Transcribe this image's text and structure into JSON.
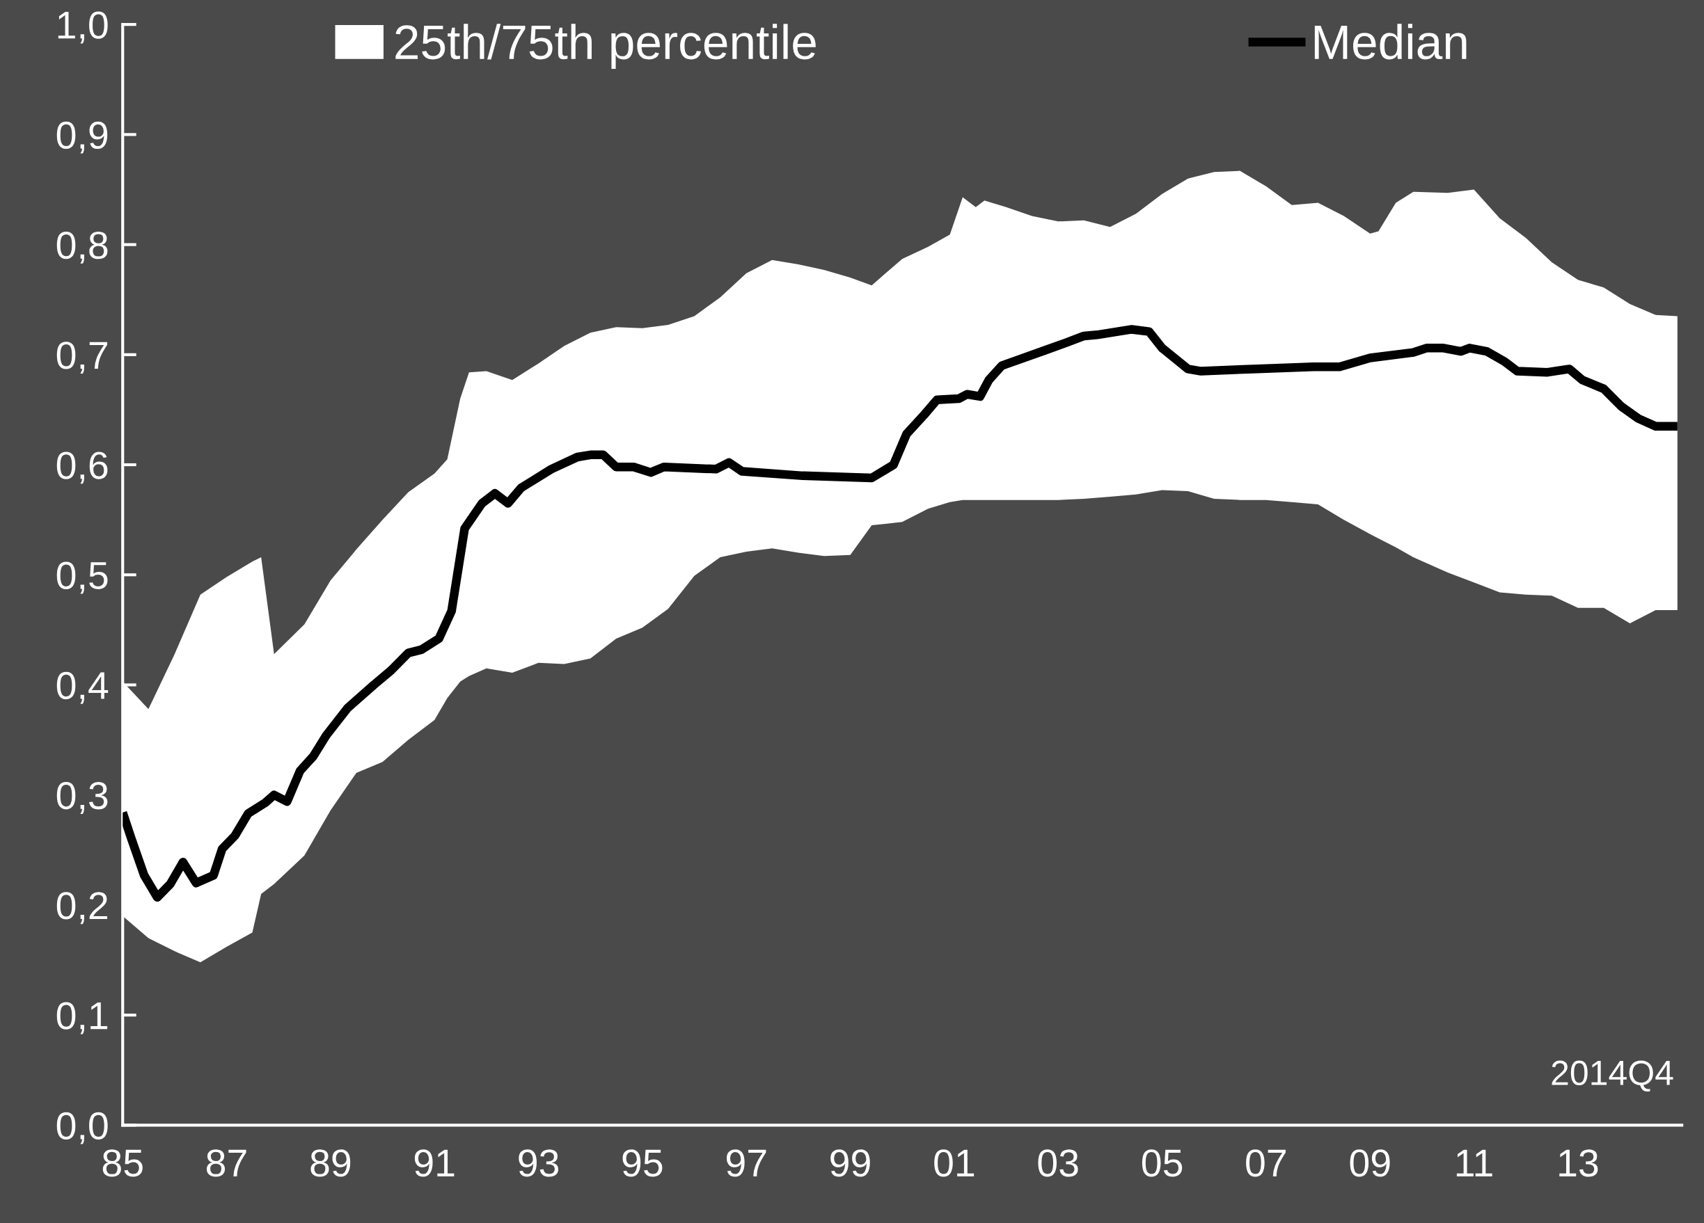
{
  "chart_data": {
    "type": "line",
    "series": [
      {
        "name": "25th/75th percentile",
        "type": "area",
        "color": "#ffffff",
        "x": [
          "1985-01",
          "1985-07",
          "1986-01",
          "1986-07",
          "1987-01",
          "1987-07",
          "1987-09",
          "1987-12",
          "1988-07",
          "1989-01",
          "1989-07",
          "1990-01",
          "1990-07",
          "1991-01",
          "1991-04",
          "1991-07",
          "1991-09",
          "1992-01",
          "1992-07",
          "1993-01",
          "1993-07",
          "1994-01",
          "1994-07",
          "1995-01",
          "1995-07",
          "1996-01",
          "1996-07",
          "1997-01",
          "1997-07",
          "1998-01",
          "1998-07",
          "1999-01",
          "1999-06",
          "2000-01",
          "2000-07",
          "2000-12",
          "2001-03",
          "2001-06",
          "2001-08",
          "2002-01",
          "2002-07",
          "2003-01",
          "2003-07",
          "2004-01",
          "2004-07",
          "2005-01",
          "2005-07",
          "2006-01",
          "2006-07",
          "2007-01",
          "2007-07",
          "2008-01",
          "2008-07",
          "2009-01",
          "2009-03",
          "2009-07",
          "2009-11",
          "2010-07",
          "2011-01",
          "2011-07",
          "2012-01",
          "2012-07",
          "2013-01",
          "2013-07",
          "2014-01",
          "2014-07",
          "2014-12"
        ],
        "lower": [
          0.19,
          0.17,
          0.158,
          0.148,
          0.162,
          0.175,
          0.21,
          0.219,
          0.245,
          0.286,
          0.32,
          0.33,
          0.35,
          0.368,
          0.388,
          0.403,
          0.408,
          0.415,
          0.411,
          0.42,
          0.419,
          0.424,
          0.442,
          0.452,
          0.469,
          0.499,
          0.516,
          0.521,
          0.524,
          0.52,
          0.517,
          0.518,
          0.545,
          0.548,
          0.56,
          0.566,
          0.568,
          0.568,
          0.568,
          0.568,
          0.568,
          0.568,
          0.569,
          0.571,
          0.573,
          0.577,
          0.576,
          0.569,
          0.568,
          0.568,
          0.566,
          0.564,
          0.55,
          0.537,
          0.533,
          0.525,
          0.516,
          0.502,
          0.493,
          0.484,
          0.482,
          0.481,
          0.47,
          0.47,
          0.456,
          0.468,
          0.468
        ],
        "values": [
          null,
          null,
          null,
          null,
          null,
          null,
          null,
          null,
          null,
          null,
          null,
          null,
          null,
          null,
          null,
          null,
          null,
          null,
          null,
          null,
          null,
          null,
          null,
          null,
          null,
          null,
          null,
          null,
          null,
          null,
          null,
          null,
          null,
          null,
          null,
          null,
          null,
          null,
          null,
          null,
          null,
          null,
          null,
          null,
          null,
          null,
          null,
          null,
          null,
          null,
          null,
          null,
          null,
          null,
          null,
          null,
          null,
          null,
          null,
          null,
          null,
          null,
          null,
          null,
          null,
          null,
          null
        ],
        "upper": [
          0.403,
          0.378,
          0.428,
          0.482,
          0.498,
          0.512,
          0.516,
          0.428,
          0.455,
          0.495,
          0.523,
          0.55,
          0.575,
          0.592,
          0.605,
          0.66,
          0.684,
          0.685,
          0.677,
          0.692,
          0.708,
          0.72,
          0.725,
          0.724,
          0.727,
          0.735,
          0.752,
          0.774,
          0.786,
          0.782,
          0.777,
          0.77,
          0.763,
          0.787,
          0.798,
          0.809,
          0.843,
          0.834,
          0.84,
          0.834,
          0.826,
          0.821,
          0.822,
          0.816,
          0.828,
          0.846,
          0.86,
          0.866,
          0.867,
          0.853,
          0.836,
          0.838,
          0.826,
          0.81,
          0.812,
          0.838,
          0.848,
          0.847,
          0.85,
          0.824,
          0.806,
          0.784,
          0.768,
          0.761,
          0.746,
          0.736,
          0.735
        ]
      },
      {
        "name": "Median",
        "color": "#000000",
        "x": [
          "1985-01",
          "1985-03",
          "1985-06",
          "1985-09",
          "1985-12",
          "1986-03",
          "1986-06",
          "1986-10",
          "1986-12",
          "1987-03",
          "1987-06",
          "1987-10",
          "1987-12",
          "1988-03",
          "1988-06",
          "1988-09",
          "1988-12",
          "1989-05",
          "1989-11",
          "1990-03",
          "1990-07",
          "1990-10",
          "1991-02",
          "1991-05",
          "1991-08",
          "1991-12",
          "1992-03",
          "1992-06",
          "1992-09",
          "1993-04",
          "1993-10",
          "1994-01",
          "1994-04",
          "1994-07",
          "1994-11",
          "1995-03",
          "1995-06",
          "1996-06",
          "1996-09",
          "1996-12",
          "1998-02",
          "1999-06",
          "1999-11",
          "2000-02",
          "2000-06",
          "2000-09",
          "2001-02",
          "2001-04",
          "2001-07",
          "2001-09",
          "2001-12",
          "2002-10",
          "2003-03",
          "2003-07",
          "2003-10",
          "2004-06",
          "2004-10",
          "2005-01",
          "2005-07",
          "2005-10",
          "2006-10",
          "2007-12",
          "2008-06",
          "2009-01",
          "2009-11",
          "2010-02",
          "2010-06",
          "2010-10",
          "2010-12",
          "2011-04",
          "2011-08",
          "2011-11",
          "2012-06",
          "2012-11",
          "2013-02",
          "2013-07",
          "2013-11",
          "2014-03",
          "2014-07",
          "2014-12"
        ],
        "values": [
          0.284,
          0.261,
          0.227,
          0.207,
          0.219,
          0.239,
          0.22,
          0.227,
          0.251,
          0.263,
          0.283,
          0.293,
          0.3,
          0.294,
          0.322,
          0.335,
          0.354,
          0.379,
          0.4,
          0.413,
          0.429,
          0.432,
          0.442,
          0.467,
          0.542,
          0.565,
          0.574,
          0.565,
          0.579,
          0.596,
          0.607,
          0.609,
          0.609,
          0.598,
          0.598,
          0.593,
          0.598,
          0.596,
          0.602,
          0.594,
          0.59,
          0.588,
          0.6,
          0.628,
          0.645,
          0.659,
          0.66,
          0.664,
          0.662,
          0.677,
          0.69,
          0.704,
          0.711,
          0.717,
          0.718,
          0.723,
          0.721,
          0.706,
          0.687,
          0.685,
          0.687,
          0.689,
          0.689,
          0.697,
          0.702,
          0.706,
          0.706,
          0.703,
          0.706,
          0.703,
          0.694,
          0.685,
          0.684,
          0.687,
          0.677,
          0.669,
          0.653,
          0.642,
          0.635,
          0.635
        ]
      }
    ],
    "xlim": [
      "1985-01",
      "2015-01"
    ],
    "xticks": [
      {
        "value": "1985",
        "label": "85"
      },
      {
        "value": "1987",
        "label": "87"
      },
      {
        "value": "1989",
        "label": "89"
      },
      {
        "value": "1991",
        "label": "91"
      },
      {
        "value": "1993",
        "label": "93"
      },
      {
        "value": "1995",
        "label": "95"
      },
      {
        "value": "1997",
        "label": "97"
      },
      {
        "value": "1999",
        "label": "99"
      },
      {
        "value": "2001",
        "label": "01"
      },
      {
        "value": "2003",
        "label": "03"
      },
      {
        "value": "2005",
        "label": "05"
      },
      {
        "value": "2007",
        "label": "07"
      },
      {
        "value": "2009",
        "label": "09"
      },
      {
        "value": "2011",
        "label": "11"
      },
      {
        "value": "2013",
        "label": "13"
      }
    ],
    "ylim": [
      0,
      1
    ],
    "yticks": [
      {
        "value": 0,
        "label": "0,0"
      },
      {
        "value": 0.1,
        "label": "0,1"
      },
      {
        "value": 0.2,
        "label": "0,2"
      },
      {
        "value": 0.3,
        "label": "0,3"
      },
      {
        "value": 0.4,
        "label": "0,4"
      },
      {
        "value": 0.5,
        "label": "0,5"
      },
      {
        "value": 0.6,
        "label": "0,6"
      },
      {
        "value": 0.7,
        "label": "0,7"
      },
      {
        "value": 0.8,
        "label": "0,8"
      },
      {
        "value": 0.9,
        "label": "0,9"
      },
      {
        "value": 1,
        "label": "1,0"
      }
    ],
    "annotations": [
      "2014Q4"
    ],
    "legend": "top",
    "grid": false
  }
}
